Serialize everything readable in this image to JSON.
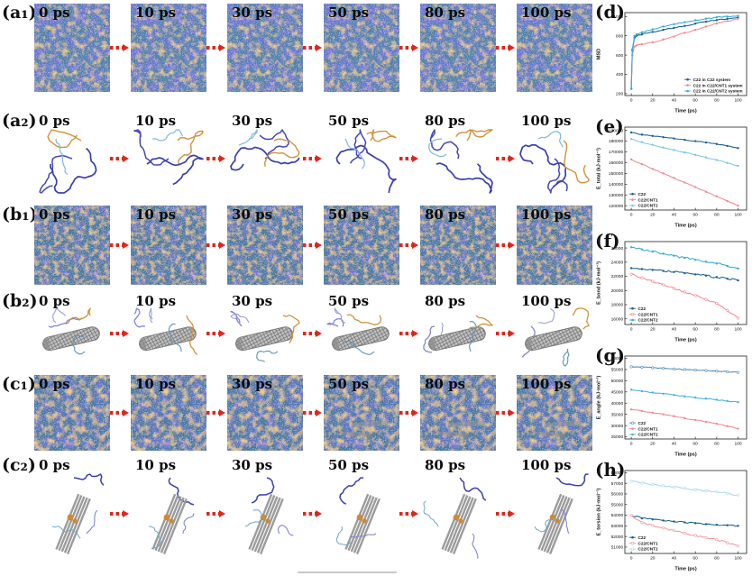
{
  "figure": {
    "rows": [
      {
        "id": "a1",
        "label": "(a₁)",
        "type": "dense",
        "variant": "a",
        "times": [
          "0 ps",
          "10 ps",
          "30 ps",
          "50 ps",
          "80 ps",
          "100 ps"
        ]
      },
      {
        "id": "a2",
        "label": "(a₂)",
        "type": "molecules-free",
        "times": [
          "0 ps",
          "10 ps",
          "30 ps",
          "50 ps",
          "80 ps",
          "100 ps"
        ]
      },
      {
        "id": "b1",
        "label": "(b₁)",
        "type": "dense",
        "variant": "b",
        "times": [
          "0 ps",
          "10 ps",
          "30 ps",
          "50 ps",
          "80 ps",
          "100 ps"
        ]
      },
      {
        "id": "b2",
        "label": "(b₂)",
        "type": "cnt-single",
        "times": [
          "0 ps",
          "10 ps",
          "30 ps",
          "50 ps",
          "80 ps",
          "100 ps"
        ]
      },
      {
        "id": "c1",
        "label": "(c₁)",
        "type": "dense",
        "variant": "c",
        "times": [
          "0 ps",
          "10 ps",
          "30 ps",
          "50 ps",
          "80 ps",
          "100 ps"
        ]
      },
      {
        "id": "c2",
        "label": "(c₂)",
        "type": "cnt-bundle",
        "times": [
          "0 ps",
          "10 ps",
          "30 ps",
          "50 ps",
          "80 ps",
          "100 ps"
        ]
      }
    ]
  },
  "colors": {
    "arrow_red": "#e0261c",
    "chain_navy": "#3a3fae",
    "chain_orange": "#d2913c",
    "chain_lightblue": "#7fb9da",
    "chain_purple": "#8186d8",
    "cnt_gray": "#c2c2c2",
    "bundle_gray": "#9c9c9c"
  },
  "chart_data": [
    {
      "id": "d",
      "panel_label": "(d)",
      "type": "line",
      "title": "",
      "xlabel": "Time (ps)",
      "ylabel": "MSD",
      "xlim": [
        -6,
        108
      ],
      "ylim": [
        180,
        1040
      ],
      "xticks": [
        0,
        20,
        40,
        60,
        80,
        100
      ],
      "yticks": [
        200,
        400,
        600,
        800,
        1000
      ],
      "legend_position": "bottom-right",
      "grid": false,
      "x": [
        0,
        1,
        3,
        5,
        10,
        20,
        30,
        40,
        50,
        60,
        70,
        80,
        90,
        100
      ],
      "series": [
        {
          "name": "C22 in C22 system",
          "color": "#1a5f96",
          "marker": "filled",
          "jitter": 6,
          "y": [
            250,
            650,
            780,
            800,
            815,
            840,
            862,
            882,
            902,
            926,
            946,
            962,
            976,
            990
          ]
        },
        {
          "name": "C22 in C22/CNT1 system",
          "color": "#f28b92",
          "marker": "filled",
          "jitter": 6,
          "y": [
            250,
            600,
            688,
            700,
            712,
            732,
            762,
            792,
            830,
            862,
            896,
            926,
            952,
            976
          ]
        },
        {
          "name": "C22 in C22/CNT2 system",
          "color": "#36aed7",
          "marker": "filled",
          "jitter": 6,
          "y": [
            250,
            660,
            798,
            815,
            836,
            866,
            896,
            920,
            941,
            961,
            977,
            991,
            1000,
            1006
          ]
        }
      ]
    },
    {
      "id": "e",
      "panel_label": "(e)",
      "type": "line",
      "title": "",
      "xlabel": "Time (ps)",
      "ylabel": "E_total (kJ·mol⁻¹)",
      "xlim": [
        -6,
        108
      ],
      "ylim": [
        116000,
        193000
      ],
      "xticks": [
        0,
        20,
        40,
        60,
        80,
        100
      ],
      "yticks": [
        120000,
        130000,
        140000,
        150000,
        160000,
        170000,
        180000,
        190000
      ],
      "legend_position": "bottom-left",
      "grid": false,
      "x": [
        0,
        10,
        20,
        30,
        40,
        50,
        60,
        70,
        80,
        90,
        100
      ],
      "series": [
        {
          "name": "C22",
          "color": "#1a5f96",
          "marker": "filled",
          "jitter": 350,
          "y": [
            188000,
            186000,
            184800,
            183600,
            182400,
            181200,
            180000,
            178700,
            177300,
            175500,
            173500
          ]
        },
        {
          "name": "C22/CNT1",
          "color": "#f28b92",
          "marker": "filled",
          "jitter": 350,
          "y": [
            163000,
            158500,
            154200,
            150000,
            145800,
            141500,
            137300,
            133000,
            128700,
            124300,
            120000
          ]
        },
        {
          "name": "C22/CNT2",
          "color": "#7ec8e8",
          "marker": "filled",
          "jitter": 350,
          "y": [
            182000,
            179000,
            176500,
            174000,
            171800,
            169500,
            167200,
            164800,
            162400,
            159700,
            157000
          ]
        }
      ]
    },
    {
      "id": "f",
      "panel_label": "(f)",
      "type": "line",
      "title": "",
      "xlabel": "Time (ps)",
      "ylabel": "E_bond (kJ·mol⁻¹)",
      "xlim": [
        -6,
        108
      ],
      "ylim": [
        15200,
        26900
      ],
      "xticks": [
        0,
        20,
        40,
        60,
        80,
        100
      ],
      "yticks": [
        16000,
        18000,
        20000,
        22000,
        24000,
        26000
      ],
      "legend_position": "bottom-left",
      "grid": false,
      "x": [
        0,
        10,
        20,
        30,
        40,
        50,
        60,
        70,
        80,
        90,
        100
      ],
      "series": [
        {
          "name": "C22",
          "color": "#1a5f96",
          "marker": "filled",
          "jitter": 160,
          "y": [
            23150,
            23020,
            22900,
            22760,
            22600,
            22430,
            22260,
            22100,
            21900,
            21660,
            21420
          ]
        },
        {
          "name": "C22/CNT1",
          "color": "#f28b92",
          "marker": "open",
          "jitter": 120,
          "y": [
            22300,
            21800,
            21300,
            20800,
            20300,
            19800,
            19300,
            18750,
            18200,
            17200,
            16100
          ]
        },
        {
          "name": "C22/CNT2",
          "color": "#36aed7",
          "marker": "filled",
          "jitter": 160,
          "y": [
            26100,
            25800,
            25500,
            25200,
            24900,
            24600,
            24320,
            24060,
            23800,
            23450,
            23100
          ]
        }
      ]
    },
    {
      "id": "g",
      "panel_label": "(g)",
      "type": "line",
      "title": "",
      "xlabel": "Time (ps)",
      "ylabel": "E_angle (kJ·mol⁻¹)",
      "xlim": [
        -6,
        108
      ],
      "ylim": [
        24000,
        61000
      ],
      "xticks": [
        0,
        20,
        40,
        60,
        80,
        100
      ],
      "yticks": [
        25000,
        30000,
        35000,
        40000,
        45000,
        50000,
        55000,
        60000
      ],
      "legend_position": "bottom-left",
      "grid": false,
      "x": [
        0,
        10,
        20,
        30,
        40,
        50,
        60,
        70,
        80,
        90,
        100
      ],
      "series": [
        {
          "name": "C22",
          "color": "#4f8cbe",
          "marker": "open",
          "jitter": 220,
          "y": [
            56200,
            56000,
            55750,
            55500,
            55250,
            55000,
            54760,
            54520,
            54300,
            54000,
            53700
          ]
        },
        {
          "name": "C22/CNT1",
          "color": "#f28b92",
          "marker": "filled",
          "jitter": 180,
          "y": [
            37200,
            36500,
            35750,
            35000,
            34150,
            33300,
            32480,
            31650,
            30800,
            29700,
            28600
          ]
        },
        {
          "name": "C22/CNT2",
          "color": "#49b2dc",
          "marker": "filled",
          "jitter": 200,
          "y": [
            46000,
            45300,
            44750,
            44200,
            43600,
            43000,
            42500,
            42000,
            41500,
            40950,
            40400
          ]
        }
      ]
    },
    {
      "id": "h",
      "panel_label": "(h)",
      "type": "line",
      "title": "",
      "xlabel": "Time (ps)",
      "ylabel": "E_torsion (kJ·mol⁻¹)",
      "xlim": [
        -6,
        108
      ],
      "ylim": [
        50400,
        58200
      ],
      "xticks": [
        0,
        20,
        40,
        60,
        80,
        100
      ],
      "yticks": [
        51000,
        52000,
        53000,
        54000,
        55000,
        56000,
        57000,
        58000
      ],
      "legend_position": "bottom-left",
      "grid": false,
      "x": [
        0,
        10,
        20,
        30,
        40,
        50,
        60,
        70,
        80,
        90,
        100
      ],
      "series": [
        {
          "name": "C22",
          "color": "#16618f",
          "marker": "filled",
          "jitter": 90,
          "y": [
            54000,
            53700,
            53600,
            53500,
            53400,
            53320,
            53250,
            53160,
            53100,
            53050,
            53000
          ]
        },
        {
          "name": "C22/CNT1",
          "color": "#f29aa1",
          "marker": "open",
          "jitter": 80,
          "y": [
            54000,
            53300,
            53050,
            52800,
            52550,
            52300,
            52100,
            51900,
            51700,
            51400,
            51100
          ]
        },
        {
          "name": "C22/CNT2",
          "color": "#a6dcee",
          "marker": "open",
          "jitter": 80,
          "y": [
            57200,
            57020,
            56900,
            56780,
            56650,
            56520,
            56400,
            56300,
            56200,
            56050,
            55900
          ]
        }
      ]
    }
  ]
}
